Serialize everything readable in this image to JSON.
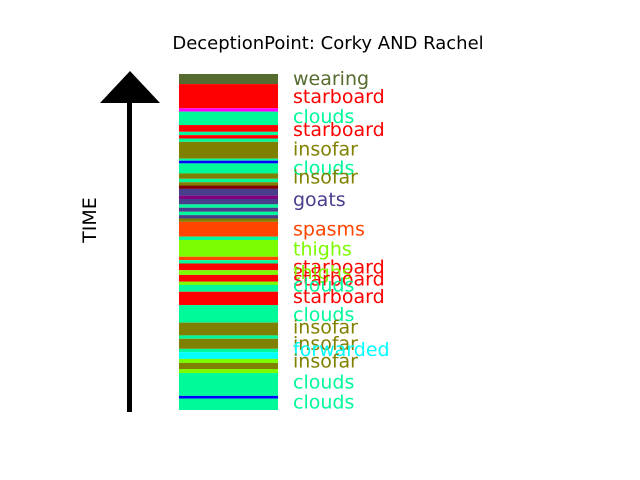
{
  "chart_data": {
    "type": "timeline",
    "title": "DeceptionPoint: Corky AND Rachel",
    "ylabel": "TIME",
    "colors": {
      "wearing": "#556B2F",
      "starboard": "#FF0000",
      "clouds": "#00FA9A",
      "insofar": "#808000",
      "goats": "#483D8B",
      "spasms": "#FF4500",
      "thighs": "#7CFC00",
      "forwarded": "#00FFFF",
      "magenta": "#FF00FF",
      "blue": "#0000FF",
      "purple": "#800080",
      "maroon": "#800000"
    },
    "bands": [
      {
        "y0": 0.0,
        "y1": 0.03,
        "color": "wearing"
      },
      {
        "y0": 0.03,
        "y1": 0.102,
        "color": "starboard"
      },
      {
        "y0": 0.102,
        "y1": 0.112,
        "color": "magenta"
      },
      {
        "y0": 0.112,
        "y1": 0.152,
        "color": "clouds"
      },
      {
        "y0": 0.152,
        "y1": 0.172,
        "color": "starboard"
      },
      {
        "y0": 0.172,
        "y1": 0.182,
        "color": "clouds"
      },
      {
        "y0": 0.182,
        "y1": 0.192,
        "color": "starboard"
      },
      {
        "y0": 0.192,
        "y1": 0.202,
        "color": "clouds"
      },
      {
        "y0": 0.202,
        "y1": 0.252,
        "color": "insofar"
      },
      {
        "y0": 0.252,
        "y1": 0.258,
        "color": "clouds"
      },
      {
        "y0": 0.258,
        "y1": 0.266,
        "color": "blue"
      },
      {
        "y0": 0.266,
        "y1": 0.296,
        "color": "clouds"
      },
      {
        "y0": 0.296,
        "y1": 0.312,
        "color": "insofar"
      },
      {
        "y0": 0.312,
        "y1": 0.322,
        "color": "clouds"
      },
      {
        "y0": 0.322,
        "y1": 0.332,
        "color": "insofar"
      },
      {
        "y0": 0.332,
        "y1": 0.342,
        "color": "maroon"
      },
      {
        "y0": 0.342,
        "y1": 0.362,
        "color": "goats"
      },
      {
        "y0": 0.362,
        "y1": 0.372,
        "color": "purple"
      },
      {
        "y0": 0.372,
        "y1": 0.388,
        "color": "goats"
      },
      {
        "y0": 0.388,
        "y1": 0.398,
        "color": "clouds"
      },
      {
        "y0": 0.398,
        "y1": 0.41,
        "color": "goats"
      },
      {
        "y0": 0.41,
        "y1": 0.42,
        "color": "clouds"
      },
      {
        "y0": 0.42,
        "y1": 0.43,
        "color": "goats"
      },
      {
        "y0": 0.43,
        "y1": 0.44,
        "color": "insofar"
      },
      {
        "y0": 0.44,
        "y1": 0.484,
        "color": "spasms"
      },
      {
        "y0": 0.484,
        "y1": 0.494,
        "color": "clouds"
      },
      {
        "y0": 0.494,
        "y1": 0.544,
        "color": "thighs"
      },
      {
        "y0": 0.544,
        "y1": 0.554,
        "color": "spasms"
      },
      {
        "y0": 0.554,
        "y1": 0.564,
        "color": "clouds"
      },
      {
        "y0": 0.564,
        "y1": 0.584,
        "color": "starboard"
      },
      {
        "y0": 0.584,
        "y1": 0.598,
        "color": "thighs"
      },
      {
        "y0": 0.598,
        "y1": 0.618,
        "color": "starboard"
      },
      {
        "y0": 0.618,
        "y1": 0.628,
        "color": "thighs"
      },
      {
        "y0": 0.628,
        "y1": 0.648,
        "color": "clouds"
      },
      {
        "y0": 0.648,
        "y1": 0.688,
        "color": "starboard"
      },
      {
        "y0": 0.688,
        "y1": 0.74,
        "color": "clouds"
      },
      {
        "y0": 0.74,
        "y1": 0.778,
        "color": "insofar"
      },
      {
        "y0": 0.778,
        "y1": 0.788,
        "color": "clouds"
      },
      {
        "y0": 0.788,
        "y1": 0.818,
        "color": "insofar"
      },
      {
        "y0": 0.818,
        "y1": 0.828,
        "color": "clouds"
      },
      {
        "y0": 0.828,
        "y1": 0.848,
        "color": "forwarded"
      },
      {
        "y0": 0.848,
        "y1": 0.86,
        "color": "thighs"
      },
      {
        "y0": 0.86,
        "y1": 0.878,
        "color": "insofar"
      },
      {
        "y0": 0.878,
        "y1": 0.89,
        "color": "thighs"
      },
      {
        "y0": 0.89,
        "y1": 0.958,
        "color": "clouds"
      },
      {
        "y0": 0.958,
        "y1": 0.966,
        "color": "blue"
      },
      {
        "y0": 0.966,
        "y1": 1.0,
        "color": "clouds"
      }
    ],
    "labels": [
      {
        "text": "wearing",
        "y": 0.012,
        "color": "wearing"
      },
      {
        "text": "starboard",
        "y": 0.065,
        "color": "starboard"
      },
      {
        "text": "clouds",
        "y": 0.125,
        "color": "clouds"
      },
      {
        "text": "starboard",
        "y": 0.163,
        "color": "starboard"
      },
      {
        "text": "insofar",
        "y": 0.222,
        "color": "insofar"
      },
      {
        "text": "clouds",
        "y": 0.279,
        "color": "clouds"
      },
      {
        "text": "insofar",
        "y": 0.305,
        "color": "insofar"
      },
      {
        "text": "goats",
        "y": 0.372,
        "color": "goats"
      },
      {
        "text": "spasms",
        "y": 0.46,
        "color": "spasms"
      },
      {
        "text": "thighs",
        "y": 0.52,
        "color": "thighs"
      },
      {
        "text": "starboard",
        "y": 0.573,
        "color": "starboard"
      },
      {
        "text": "thighs",
        "y": 0.59,
        "color": "thighs"
      },
      {
        "text": "starboard",
        "y": 0.608,
        "color": "starboard"
      },
      {
        "text": "clouds",
        "y": 0.627,
        "color": "clouds"
      },
      {
        "text": "starboard",
        "y": 0.661,
        "color": "starboard"
      },
      {
        "text": "clouds",
        "y": 0.715,
        "color": "clouds"
      },
      {
        "text": "insofar",
        "y": 0.752,
        "color": "insofar"
      },
      {
        "text": "insofar",
        "y": 0.8,
        "color": "insofar"
      },
      {
        "text": "forwarded",
        "y": 0.818,
        "color": "forwarded"
      },
      {
        "text": "insofar",
        "y": 0.853,
        "color": "insofar"
      },
      {
        "text": "clouds",
        "y": 0.915,
        "color": "clouds"
      },
      {
        "text": "clouds",
        "y": 0.974,
        "color": "clouds"
      }
    ]
  }
}
